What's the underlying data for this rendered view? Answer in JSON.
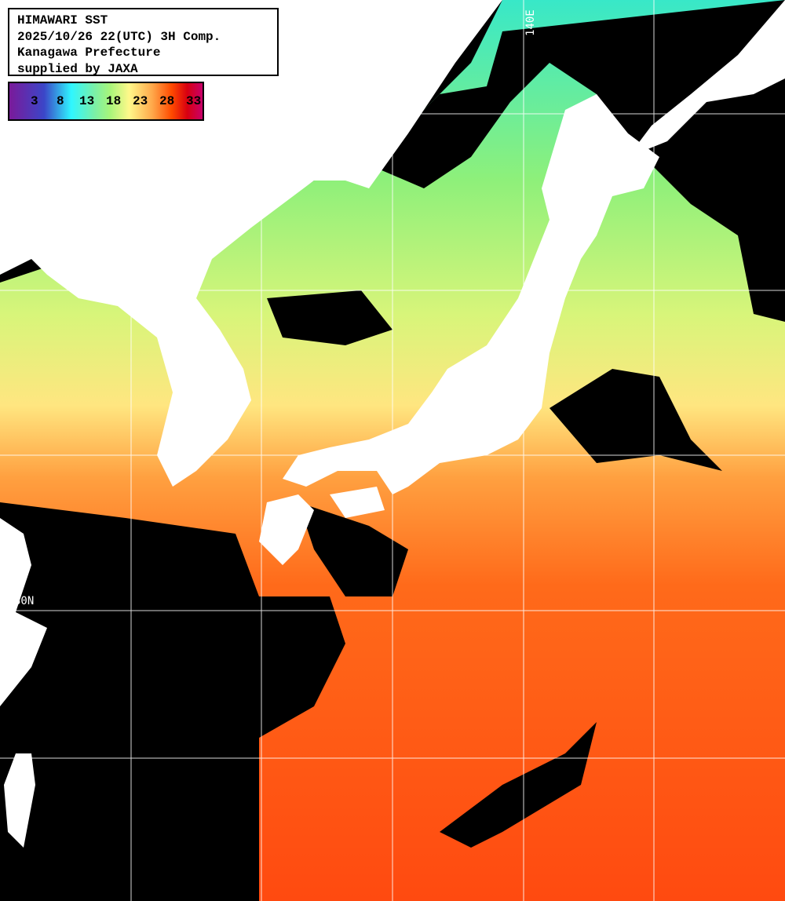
{
  "title": {
    "line1": "HIMAWARI SST",
    "line2": "2025/10/26 22(UTC) 3H Comp.",
    "line3": "Kanagawa Prefecture",
    "line4": "supplied by JAXA"
  },
  "legend": {
    "unit_ticks": [
      "3",
      "8",
      "13",
      "18",
      "23",
      "28",
      "33"
    ],
    "colors": [
      "#7a1a9a",
      "#3b46c8",
      "#2ff6ff",
      "#7af0a8",
      "#a7f57a",
      "#fff88a",
      "#ffa84a",
      "#ff4a00",
      "#d80010",
      "#c8006a"
    ]
  },
  "grid": {
    "longitude_label": "140E",
    "latitude_label": "30N"
  },
  "colors": {
    "land": "#ffffff",
    "cloud": "#000000",
    "grid": "#ffffff"
  }
}
